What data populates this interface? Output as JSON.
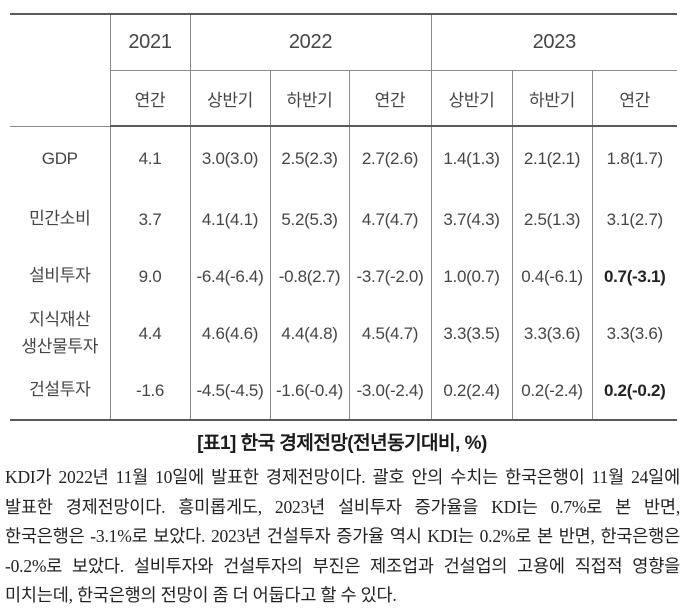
{
  "table": {
    "year_headers": [
      {
        "label": "2021",
        "colspan": "1"
      },
      {
        "label": "2022",
        "colspan": "3"
      },
      {
        "label": "2023",
        "colspan": "3"
      }
    ],
    "period_headers": [
      "연간",
      "상반기",
      "하반기",
      "연간",
      "상반기",
      "하반기",
      "연간"
    ],
    "rows": [
      {
        "label": "GDP",
        "values": [
          "4.1",
          "3.0(3.0)",
          "2.5(2.3)",
          "2.7(2.6)",
          "1.4(1.3)",
          "2.1(2.1)",
          "1.8(1.7)"
        ],
        "bold_last": false
      },
      {
        "label": "민간소비",
        "values": [
          "3.7",
          "4.1(4.1)",
          "5.2(5.3)",
          "4.7(4.7)",
          "3.7(4.3)",
          "2.5(1.3)",
          "3.1(2.7)"
        ],
        "bold_last": false
      },
      {
        "label": "설비투자",
        "values": [
          "9.0",
          "-6.4(-6.4)",
          "-0.8(2.7)",
          "-3.7(-2.0)",
          "1.0(0.7)",
          "0.4(-6.1)",
          "0.7(-3.1)"
        ],
        "bold_last": true
      },
      {
        "label": "지식재산\n생산물투자",
        "values": [
          "4.4",
          "4.6(4.6)",
          "4.4(4.8)",
          "4.5(4.7)",
          "3.3(3.5)",
          "3.3(3.6)",
          "3.3(3.6)"
        ],
        "bold_last": false
      },
      {
        "label": "건설투자",
        "values": [
          "-1.6",
          "-4.5(-4.5)",
          "-1.6(-0.4)",
          "-3.0(-2.4)",
          "0.2(2.4)",
          "0.2(-2.4)",
          "0.2(-0.2)"
        ],
        "bold_last": true
      }
    ]
  },
  "caption": "[표1] 한국 경제전망(전년동기대비, %)",
  "paragraph": "KDI가 2022년 11월 10일에 발표한 경제전망이다. 괄호 안의 수치는 한국은행이 11월 24일에 발표한 경제전망이다. 흥미롭게도, 2023년 설비투자 증가율을 KDI는 0.7%로 본 반면, 한국은행은 -3.1%로 보았다. 2023년 건설투자 증가율 역시 KDI는 0.2%로 본 반면, 한국은행은 -0.2%로 보았다. 설비투자와 건설투자의 부진은 제조업과 건설업의 고용에 직접적 영향을 미치는데, 한국은행의 전망이 좀 더 어둡다고 할 수 있다.",
  "colors": {
    "rule_strong": "#5a5a5a",
    "rule_light": "#8a8a8a",
    "table_text": "#454545",
    "body_text": "#222222"
  }
}
